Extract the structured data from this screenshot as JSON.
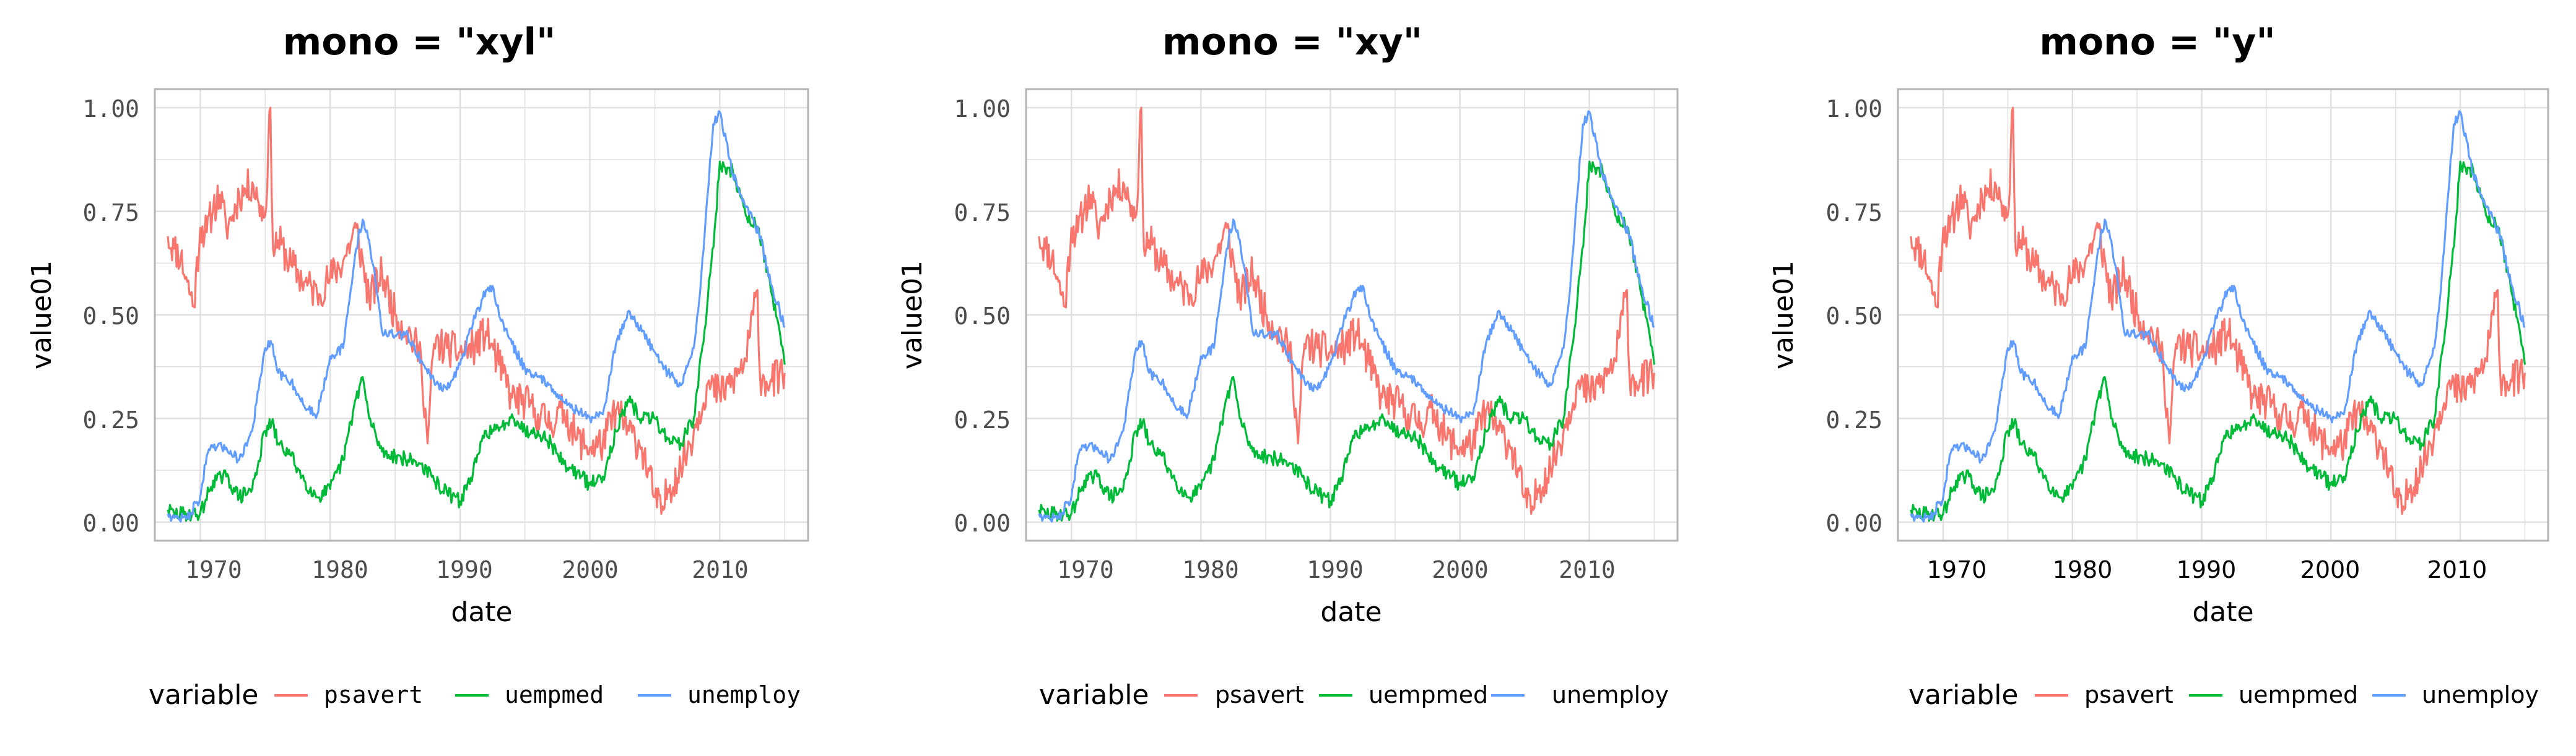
{
  "colors": {
    "psavert": "#F8766D",
    "uempmed": "#00BA38",
    "unemploy": "#619CFF",
    "grid": "#e0e0e0",
    "border": "#b3b3b3"
  },
  "chart_data": [
    {
      "type": "line",
      "title": "mono = \"xyl\"",
      "xlabel": "date",
      "ylabel": "value01",
      "x_ticks": [
        "1970",
        "1980",
        "1990",
        "2000",
        "2010"
      ],
      "y_ticks": [
        "0.00",
        "0.25",
        "0.50",
        "0.75",
        "1.00"
      ],
      "xlim": [
        1966.5,
        2016.8
      ],
      "ylim": [
        -0.045,
        1.045
      ],
      "grid": true,
      "tick_font": "mono",
      "legend": {
        "title": "variable",
        "position": "bottom",
        "font": "mono",
        "labels": [
          "psavert",
          "uempmed",
          "unemploy"
        ]
      }
    },
    {
      "type": "line",
      "title": "mono = \"xy\"",
      "xlabel": "date",
      "ylabel": "value01",
      "x_ticks": [
        "1970",
        "1980",
        "1990",
        "2000",
        "2010"
      ],
      "y_ticks": [
        "0.00",
        "0.25",
        "0.50",
        "0.75",
        "1.00"
      ],
      "xlim": [
        1966.5,
        2016.8
      ],
      "ylim": [
        -0.045,
        1.045
      ],
      "grid": true,
      "tick_font": "mono",
      "legend": {
        "title": "variable",
        "position": "bottom",
        "font": "sans",
        "labels": [
          "psavert",
          "uempmed",
          "unemploy"
        ]
      }
    },
    {
      "type": "line",
      "title": "mono = \"y\"",
      "xlabel": "date",
      "ylabel": "value01",
      "x_ticks": [
        "1970",
        "1980",
        "1990",
        "2000",
        "2010"
      ],
      "y_ticks": [
        "0.00",
        "0.25",
        "0.50",
        "0.75",
        "1.00"
      ],
      "xlim": [
        1966.5,
        2016.8
      ],
      "ylim": [
        -0.045,
        1.045
      ],
      "grid": true,
      "tick_font": "mixed",
      "legend": {
        "title": "variable",
        "position": "bottom",
        "font": "sans",
        "labels": [
          "psavert",
          "uempmed",
          "unemploy"
        ]
      }
    }
  ],
  "series": [
    {
      "name": "psavert",
      "x": [
        1967.5,
        1968,
        1968.5,
        1969,
        1969.5,
        1970,
        1970.5,
        1971,
        1971.5,
        1972,
        1972.5,
        1973,
        1973.5,
        1974,
        1974.5,
        1975,
        1975.4,
        1975.6,
        1976,
        1977,
        1978,
        1979,
        1980,
        1981,
        1982,
        1983,
        1984,
        1985,
        1986,
        1987,
        1987.5,
        1988,
        1989,
        1990,
        1991,
        1992,
        1993,
        1994,
        1995,
        1996,
        1997,
        1998,
        1999,
        2000,
        2001,
        2002,
        2003,
        2004,
        2005,
        2005.5,
        2006,
        2007,
        2008,
        2009,
        2010,
        2011,
        2012,
        2012.9,
        2013.1,
        2014,
        2015
      ],
      "y": [
        0.69,
        0.66,
        0.64,
        0.58,
        0.52,
        0.71,
        0.7,
        0.76,
        0.79,
        0.71,
        0.74,
        0.79,
        0.8,
        0.82,
        0.77,
        0.74,
        1.0,
        0.66,
        0.68,
        0.62,
        0.58,
        0.55,
        0.59,
        0.63,
        0.71,
        0.54,
        0.6,
        0.5,
        0.46,
        0.4,
        0.19,
        0.43,
        0.42,
        0.41,
        0.42,
        0.46,
        0.38,
        0.3,
        0.29,
        0.26,
        0.24,
        0.27,
        0.2,
        0.18,
        0.19,
        0.27,
        0.22,
        0.18,
        0.06,
        0.02,
        0.08,
        0.13,
        0.22,
        0.33,
        0.31,
        0.34,
        0.39,
        0.56,
        0.35,
        0.34,
        0.36
      ]
    },
    {
      "name": "uempmed",
      "x": [
        1967.5,
        1968,
        1969,
        1970,
        1971,
        1972,
        1973,
        1974,
        1975,
        1975.5,
        1976,
        1977,
        1978,
        1979,
        1980,
        1981,
        1982,
        1982.5,
        1983,
        1984,
        1985,
        1986,
        1987,
        1988,
        1989,
        1990,
        1991,
        1992,
        1993,
        1994,
        1995,
        1996,
        1997,
        1998,
        1999,
        2000,
        2001,
        2002,
        2003,
        2004,
        2005,
        2006,
        2007,
        2008,
        2009,
        2009.7,
        2010,
        2010.5,
        2011,
        2012,
        2013,
        2014,
        2015
      ],
      "y": [
        0.03,
        0.02,
        0.02,
        0.02,
        0.1,
        0.11,
        0.06,
        0.08,
        0.22,
        0.24,
        0.19,
        0.16,
        0.1,
        0.06,
        0.08,
        0.15,
        0.3,
        0.35,
        0.25,
        0.17,
        0.16,
        0.15,
        0.14,
        0.1,
        0.07,
        0.05,
        0.12,
        0.22,
        0.22,
        0.26,
        0.22,
        0.22,
        0.19,
        0.14,
        0.12,
        0.09,
        0.11,
        0.22,
        0.29,
        0.25,
        0.25,
        0.2,
        0.19,
        0.25,
        0.51,
        0.74,
        0.87,
        0.84,
        0.85,
        0.74,
        0.71,
        0.55,
        0.38
      ]
    },
    {
      "name": "unemploy",
      "x": [
        1967.5,
        1968,
        1969,
        1970,
        1970.5,
        1971,
        1972,
        1973,
        1974,
        1975,
        1975.5,
        1976,
        1977,
        1978,
        1979,
        1980,
        1981,
        1982,
        1982.5,
        1983,
        1983.5,
        1984,
        1985,
        1986,
        1987,
        1988,
        1989,
        1990,
        1991,
        1992,
        1992.5,
        1993,
        1994,
        1995,
        1996,
        1997,
        1998,
        1999,
        2000,
        2001,
        2002,
        2003,
        2004,
        2005,
        2006,
        2007,
        2008,
        2008.5,
        2009,
        2009.5,
        2010,
        2010.5,
        2011,
        2012,
        2013,
        2014,
        2015
      ],
      "y": [
        0.02,
        0.01,
        0.01,
        0.06,
        0.16,
        0.18,
        0.18,
        0.15,
        0.22,
        0.42,
        0.43,
        0.36,
        0.34,
        0.28,
        0.26,
        0.4,
        0.42,
        0.66,
        0.73,
        0.68,
        0.58,
        0.46,
        0.45,
        0.45,
        0.39,
        0.34,
        0.32,
        0.38,
        0.48,
        0.56,
        0.57,
        0.5,
        0.43,
        0.37,
        0.35,
        0.33,
        0.29,
        0.27,
        0.25,
        0.26,
        0.43,
        0.51,
        0.46,
        0.41,
        0.36,
        0.33,
        0.42,
        0.56,
        0.77,
        0.96,
        0.99,
        0.92,
        0.84,
        0.76,
        0.7,
        0.57,
        0.47
      ]
    }
  ]
}
